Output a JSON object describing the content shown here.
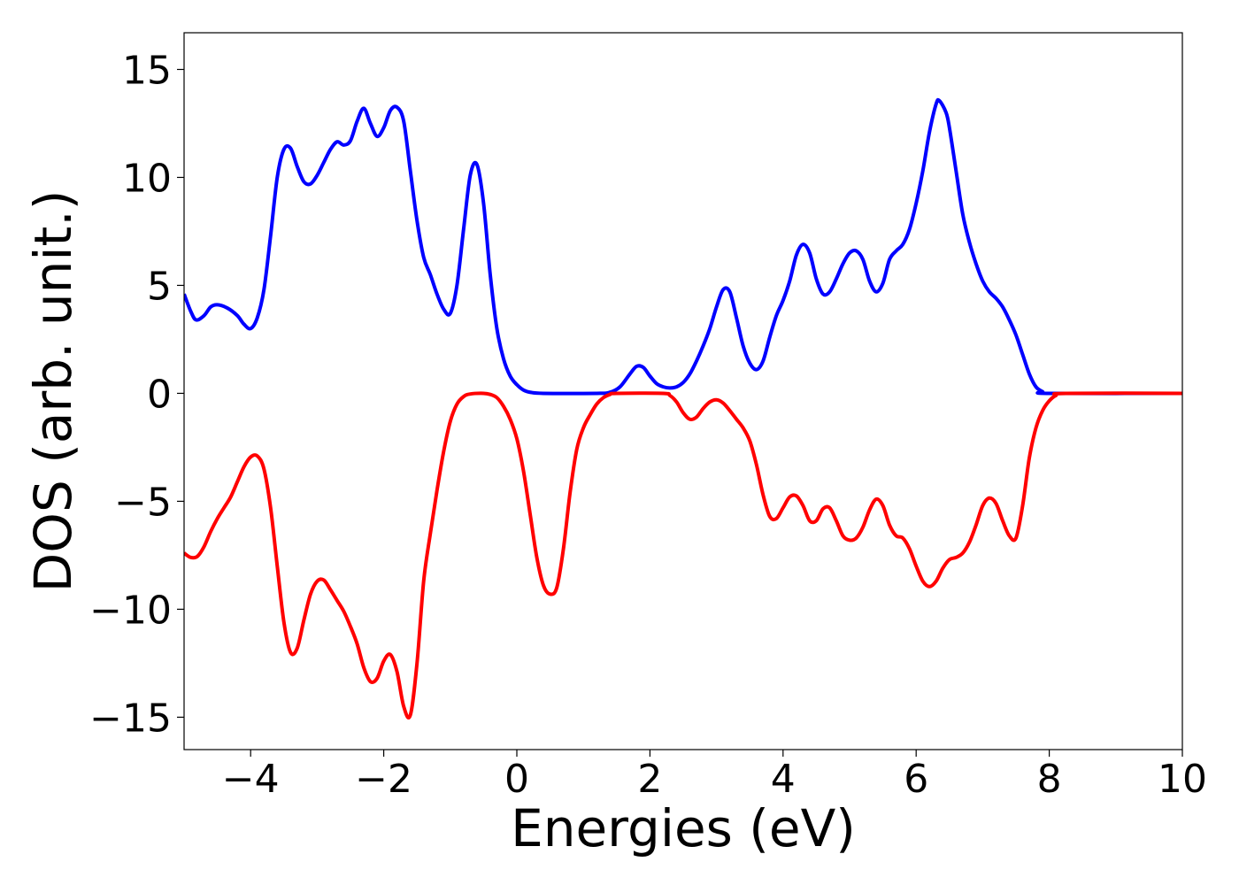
{
  "chart_data": {
    "type": "line",
    "title": "",
    "xlabel": "Energies (eV)",
    "ylabel": "DOS (arb. unit.)",
    "xlim": [
      -5,
      10
    ],
    "ylim": [
      -16.5,
      16.7
    ],
    "xticks": [
      -4,
      -2,
      0,
      2,
      4,
      6,
      8,
      10
    ],
    "xtick_labels": [
      "−4",
      "−2",
      "0",
      "2",
      "4",
      "6",
      "8",
      "10"
    ],
    "yticks": [
      15,
      10,
      5,
      0,
      -5,
      -10,
      -15
    ],
    "ytick_labels": [
      "15",
      "10",
      "5",
      "0",
      "−5",
      "−10",
      "−15"
    ],
    "grid": false,
    "legend": false,
    "series": [
      {
        "color": "#0000ff",
        "points": [
          [
            -5.0,
            4.6
          ],
          [
            -4.9,
            3.8
          ],
          [
            -4.82,
            3.4
          ],
          [
            -4.7,
            3.6
          ],
          [
            -4.6,
            4.0
          ],
          [
            -4.5,
            4.1
          ],
          [
            -4.35,
            3.95
          ],
          [
            -4.2,
            3.6
          ],
          [
            -4.1,
            3.2
          ],
          [
            -4.0,
            3.0
          ],
          [
            -3.9,
            3.5
          ],
          [
            -3.8,
            4.8
          ],
          [
            -3.7,
            7.3
          ],
          [
            -3.6,
            10.0
          ],
          [
            -3.5,
            11.3
          ],
          [
            -3.4,
            11.35
          ],
          [
            -3.3,
            10.5
          ],
          [
            -3.2,
            9.8
          ],
          [
            -3.1,
            9.7
          ],
          [
            -3.0,
            10.1
          ],
          [
            -2.9,
            10.7
          ],
          [
            -2.8,
            11.3
          ],
          [
            -2.7,
            11.65
          ],
          [
            -2.6,
            11.5
          ],
          [
            -2.5,
            11.7
          ],
          [
            -2.4,
            12.6
          ],
          [
            -2.3,
            13.2
          ],
          [
            -2.2,
            12.5
          ],
          [
            -2.1,
            11.9
          ],
          [
            -2.0,
            12.3
          ],
          [
            -1.9,
            13.1
          ],
          [
            -1.8,
            13.25
          ],
          [
            -1.7,
            12.6
          ],
          [
            -1.6,
            10.3
          ],
          [
            -1.5,
            8.0
          ],
          [
            -1.4,
            6.3
          ],
          [
            -1.3,
            5.5
          ],
          [
            -1.2,
            4.6
          ],
          [
            -1.1,
            3.9
          ],
          [
            -1.0,
            3.7
          ],
          [
            -0.9,
            5.0
          ],
          [
            -0.8,
            7.6
          ],
          [
            -0.7,
            10.1
          ],
          [
            -0.6,
            10.6
          ],
          [
            -0.5,
            8.8
          ],
          [
            -0.4,
            5.5
          ],
          [
            -0.3,
            3.0
          ],
          [
            -0.2,
            1.6
          ],
          [
            -0.1,
            0.8
          ],
          [
            0.0,
            0.4
          ],
          [
            0.1,
            0.15
          ],
          [
            0.2,
            0.05
          ],
          [
            0.4,
            0.0
          ],
          [
            1.2,
            0.0
          ],
          [
            1.4,
            0.05
          ],
          [
            1.55,
            0.3
          ],
          [
            1.7,
            0.9
          ],
          [
            1.8,
            1.25
          ],
          [
            1.9,
            1.2
          ],
          [
            2.0,
            0.8
          ],
          [
            2.1,
            0.45
          ],
          [
            2.2,
            0.3
          ],
          [
            2.3,
            0.25
          ],
          [
            2.4,
            0.3
          ],
          [
            2.5,
            0.5
          ],
          [
            2.6,
            0.9
          ],
          [
            2.7,
            1.5
          ],
          [
            2.8,
            2.2
          ],
          [
            2.9,
            3.0
          ],
          [
            3.0,
            4.0
          ],
          [
            3.1,
            4.8
          ],
          [
            3.2,
            4.7
          ],
          [
            3.3,
            3.5
          ],
          [
            3.4,
            2.2
          ],
          [
            3.5,
            1.4
          ],
          [
            3.6,
            1.1
          ],
          [
            3.7,
            1.5
          ],
          [
            3.8,
            2.6
          ],
          [
            3.9,
            3.6
          ],
          [
            4.0,
            4.3
          ],
          [
            4.1,
            5.2
          ],
          [
            4.2,
            6.4
          ],
          [
            4.3,
            6.9
          ],
          [
            4.4,
            6.5
          ],
          [
            4.5,
            5.3
          ],
          [
            4.6,
            4.6
          ],
          [
            4.7,
            4.7
          ],
          [
            4.8,
            5.3
          ],
          [
            4.9,
            6.0
          ],
          [
            5.0,
            6.5
          ],
          [
            5.1,
            6.6
          ],
          [
            5.2,
            6.2
          ],
          [
            5.3,
            5.2
          ],
          [
            5.4,
            4.7
          ],
          [
            5.5,
            5.1
          ],
          [
            5.6,
            6.2
          ],
          [
            5.7,
            6.6
          ],
          [
            5.8,
            6.9
          ],
          [
            5.9,
            7.6
          ],
          [
            6.0,
            8.8
          ],
          [
            6.1,
            10.3
          ],
          [
            6.2,
            12.1
          ],
          [
            6.3,
            13.4
          ],
          [
            6.35,
            13.55
          ],
          [
            6.45,
            13.0
          ],
          [
            6.5,
            12.3
          ],
          [
            6.6,
            10.3
          ],
          [
            6.7,
            8.3
          ],
          [
            6.8,
            7.0
          ],
          [
            6.9,
            6.0
          ],
          [
            7.0,
            5.2
          ],
          [
            7.1,
            4.7
          ],
          [
            7.2,
            4.4
          ],
          [
            7.3,
            4.0
          ],
          [
            7.4,
            3.4
          ],
          [
            7.5,
            2.7
          ],
          [
            7.6,
            1.8
          ],
          [
            7.7,
            0.9
          ],
          [
            7.8,
            0.3
          ],
          [
            7.9,
            0.08
          ],
          [
            8.0,
            0.0
          ],
          [
            10.0,
            0.0
          ]
        ]
      },
      {
        "color": "#ff0000",
        "points": [
          [
            -5.0,
            -7.4
          ],
          [
            -4.9,
            -7.6
          ],
          [
            -4.8,
            -7.55
          ],
          [
            -4.7,
            -7.1
          ],
          [
            -4.6,
            -6.4
          ],
          [
            -4.5,
            -5.8
          ],
          [
            -4.4,
            -5.3
          ],
          [
            -4.3,
            -4.8
          ],
          [
            -4.2,
            -4.1
          ],
          [
            -4.1,
            -3.4
          ],
          [
            -4.0,
            -2.95
          ],
          [
            -3.9,
            -2.9
          ],
          [
            -3.8,
            -3.5
          ],
          [
            -3.7,
            -5.3
          ],
          [
            -3.6,
            -8.0
          ],
          [
            -3.5,
            -10.6
          ],
          [
            -3.4,
            -12.0
          ],
          [
            -3.3,
            -11.8
          ],
          [
            -3.2,
            -10.5
          ],
          [
            -3.1,
            -9.3
          ],
          [
            -3.0,
            -8.7
          ],
          [
            -2.9,
            -8.65
          ],
          [
            -2.8,
            -9.1
          ],
          [
            -2.7,
            -9.6
          ],
          [
            -2.6,
            -10.1
          ],
          [
            -2.5,
            -10.8
          ],
          [
            -2.4,
            -11.6
          ],
          [
            -2.3,
            -12.7
          ],
          [
            -2.2,
            -13.35
          ],
          [
            -2.1,
            -13.2
          ],
          [
            -2.0,
            -12.4
          ],
          [
            -1.9,
            -12.1
          ],
          [
            -1.8,
            -12.9
          ],
          [
            -1.7,
            -14.5
          ],
          [
            -1.6,
            -14.9
          ],
          [
            -1.5,
            -12.5
          ],
          [
            -1.4,
            -8.7
          ],
          [
            -1.3,
            -6.5
          ],
          [
            -1.2,
            -4.5
          ],
          [
            -1.1,
            -2.7
          ],
          [
            -1.0,
            -1.3
          ],
          [
            -0.9,
            -0.5
          ],
          [
            -0.8,
            -0.15
          ],
          [
            -0.7,
            -0.03
          ],
          [
            -0.5,
            0.0
          ],
          [
            -0.4,
            -0.05
          ],
          [
            -0.3,
            -0.2
          ],
          [
            -0.2,
            -0.6
          ],
          [
            -0.1,
            -1.2
          ],
          [
            0.0,
            -2.1
          ],
          [
            0.1,
            -3.6
          ],
          [
            0.2,
            -5.6
          ],
          [
            0.3,
            -7.6
          ],
          [
            0.4,
            -8.9
          ],
          [
            0.5,
            -9.3
          ],
          [
            0.6,
            -9.0
          ],
          [
            0.7,
            -7.2
          ],
          [
            0.8,
            -4.6
          ],
          [
            0.9,
            -2.6
          ],
          [
            1.0,
            -1.6
          ],
          [
            1.1,
            -1.0
          ],
          [
            1.2,
            -0.5
          ],
          [
            1.3,
            -0.2
          ],
          [
            1.4,
            -0.05
          ],
          [
            1.5,
            0.0
          ],
          [
            2.2,
            0.0
          ],
          [
            2.3,
            -0.1
          ],
          [
            2.4,
            -0.4
          ],
          [
            2.5,
            -0.9
          ],
          [
            2.6,
            -1.2
          ],
          [
            2.7,
            -1.1
          ],
          [
            2.8,
            -0.7
          ],
          [
            2.9,
            -0.4
          ],
          [
            3.0,
            -0.3
          ],
          [
            3.1,
            -0.45
          ],
          [
            3.2,
            -0.8
          ],
          [
            3.3,
            -1.2
          ],
          [
            3.4,
            -1.6
          ],
          [
            3.5,
            -2.2
          ],
          [
            3.6,
            -3.3
          ],
          [
            3.7,
            -4.7
          ],
          [
            3.8,
            -5.7
          ],
          [
            3.9,
            -5.8
          ],
          [
            4.0,
            -5.3
          ],
          [
            4.1,
            -4.8
          ],
          [
            4.2,
            -4.75
          ],
          [
            4.3,
            -5.2
          ],
          [
            4.4,
            -5.9
          ],
          [
            4.5,
            -5.9
          ],
          [
            4.6,
            -5.35
          ],
          [
            4.7,
            -5.3
          ],
          [
            4.8,
            -5.9
          ],
          [
            4.9,
            -6.6
          ],
          [
            5.0,
            -6.8
          ],
          [
            5.1,
            -6.7
          ],
          [
            5.2,
            -6.2
          ],
          [
            5.3,
            -5.4
          ],
          [
            5.4,
            -4.9
          ],
          [
            5.5,
            -5.2
          ],
          [
            5.6,
            -6.1
          ],
          [
            5.7,
            -6.6
          ],
          [
            5.8,
            -6.7
          ],
          [
            5.9,
            -7.2
          ],
          [
            6.0,
            -8.0
          ],
          [
            6.1,
            -8.7
          ],
          [
            6.2,
            -8.95
          ],
          [
            6.3,
            -8.7
          ],
          [
            6.4,
            -8.1
          ],
          [
            6.5,
            -7.7
          ],
          [
            6.6,
            -7.6
          ],
          [
            6.7,
            -7.4
          ],
          [
            6.8,
            -6.9
          ],
          [
            6.9,
            -6.1
          ],
          [
            7.0,
            -5.2
          ],
          [
            7.1,
            -4.85
          ],
          [
            7.2,
            -5.1
          ],
          [
            7.3,
            -5.9
          ],
          [
            7.4,
            -6.6
          ],
          [
            7.5,
            -6.7
          ],
          [
            7.6,
            -5.2
          ],
          [
            7.7,
            -3.0
          ],
          [
            7.8,
            -1.6
          ],
          [
            7.9,
            -0.8
          ],
          [
            8.0,
            -0.35
          ],
          [
            8.1,
            -0.1
          ],
          [
            8.25,
            0.0
          ],
          [
            10.0,
            0.0
          ]
        ]
      }
    ]
  }
}
